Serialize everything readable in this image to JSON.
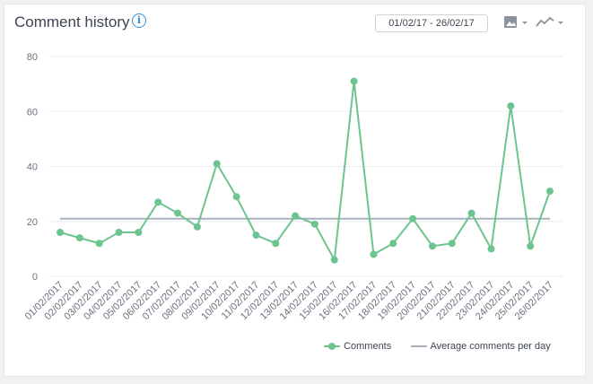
{
  "header": {
    "title": "Comment history",
    "info_icon": "info-icon",
    "date_range": "01/02/17 - 26/02/17",
    "image_export_icon": "image-icon",
    "chart_type_icon": "line-chart-icon"
  },
  "colors": {
    "series": "#6cc48f",
    "average": "#a8b2bc",
    "grid": "#eceef1"
  },
  "chart_data": {
    "type": "line",
    "title": "Comment history",
    "xlabel": "",
    "ylabel": "",
    "ylim": [
      0,
      80
    ],
    "yticks": [
      "0",
      "20",
      "40",
      "60",
      "80"
    ],
    "categories": [
      "01/02/2017",
      "02/02/2017",
      "03/02/2017",
      "04/02/2017",
      "05/02/2017",
      "06/02/2017",
      "07/02/2017",
      "08/02/2017",
      "09/02/2017",
      "10/02/2017",
      "11/02/2017",
      "12/02/2017",
      "13/02/2017",
      "14/02/2017",
      "15/02/2017",
      "16/02/2017",
      "17/02/2017",
      "18/02/2017",
      "19/02/2017",
      "20/02/2017",
      "21/02/2017",
      "22/02/2017",
      "23/02/2017",
      "24/02/2017",
      "25/02/2017",
      "26/02/2017"
    ],
    "series": [
      {
        "name": "Comments",
        "values": [
          16,
          14,
          12,
          16,
          16,
          27,
          23,
          18,
          41,
          29,
          15,
          12,
          22,
          19,
          6,
          71,
          8,
          12,
          21,
          11,
          12,
          23,
          10,
          62,
          11,
          31
        ]
      },
      {
        "name": "Average comments per day",
        "values": [
          21,
          21,
          21,
          21,
          21,
          21,
          21,
          21,
          21,
          21,
          21,
          21,
          21,
          21,
          21,
          21,
          21,
          21,
          21,
          21,
          21,
          21,
          21,
          21,
          21,
          21
        ]
      }
    ],
    "grid": true,
    "legend": "bottom-right"
  }
}
